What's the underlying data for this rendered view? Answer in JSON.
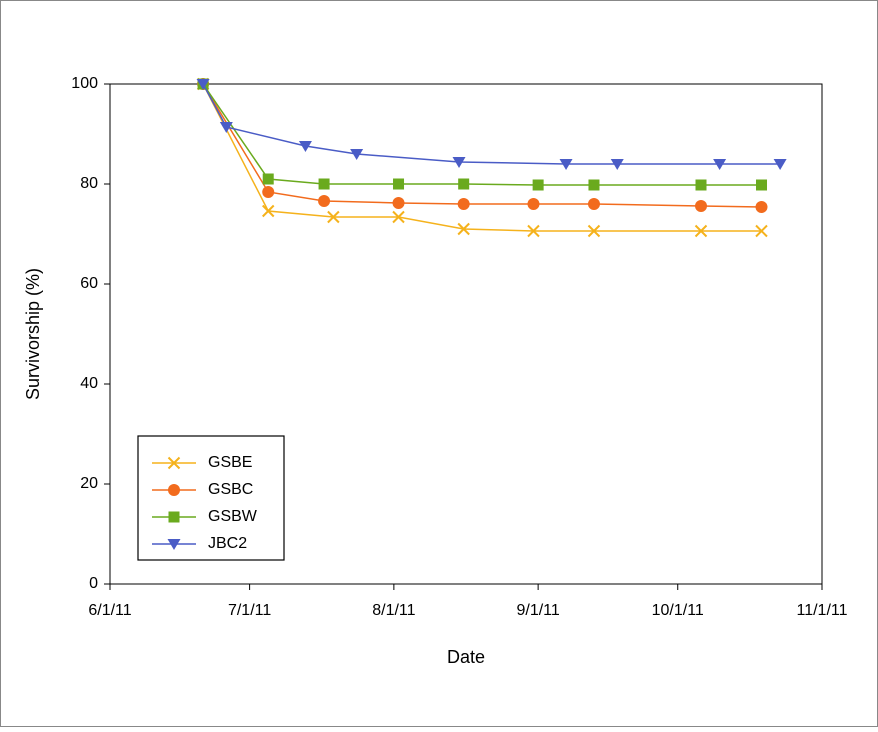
{
  "chart_data": {
    "type": "line",
    "x_label": "Date",
    "y_label": "Survivorship (%)",
    "xlim": [
      "6/1/11",
      "11/1/11"
    ],
    "xticks": [
      "6/1/11",
      "7/1/11",
      "8/1/11",
      "9/1/11",
      "10/1/11",
      "11/1/11"
    ],
    "ylim": [
      0,
      100
    ],
    "yticks": [
      0,
      20,
      40,
      60,
      80,
      100
    ],
    "grid": false,
    "legend": "lower left",
    "series": [
      {
        "name": "GSBE",
        "color": "#f5b21c",
        "marker": "x",
        "x": [
          "6/21/11",
          "7/5/11",
          "7/19/11",
          "8/2/11",
          "8/16/11",
          "8/31/11",
          "9/13/11",
          "10/6/11",
          "10/19/11"
        ],
        "values": [
          100,
          74.6,
          73.4,
          73.4,
          71,
          70.6,
          70.6,
          70.6,
          70.6
        ]
      },
      {
        "name": "GSBC",
        "color": "#f26b1d",
        "marker": "circle",
        "x": [
          "6/21/11",
          "7/5/11",
          "7/17/11",
          "8/2/11",
          "8/16/11",
          "8/31/11",
          "9/13/11",
          "10/6/11",
          "10/19/11"
        ],
        "values": [
          100,
          78.4,
          76.6,
          76.2,
          76,
          76,
          76,
          75.6,
          75.4
        ]
      },
      {
        "name": "GSBW",
        "color": "#6aaa1e",
        "marker": "square",
        "x": [
          "6/21/11",
          "7/5/11",
          "7/17/11",
          "8/2/11",
          "8/16/11",
          "9/1/11",
          "9/13/11",
          "10/6/11",
          "10/19/11"
        ],
        "values": [
          100,
          81,
          80,
          80,
          80,
          79.8,
          79.8,
          79.8,
          79.8
        ]
      },
      {
        "name": "JBC2",
        "color": "#4a5cc6",
        "marker": "triangle-down",
        "x": [
          "6/21/11",
          "6/26/11",
          "7/13/11",
          "7/24/11",
          "8/15/11",
          "9/7/11",
          "9/18/11",
          "10/10/11",
          "10/23/11"
        ],
        "values": [
          100,
          91.4,
          87.6,
          86,
          84.4,
          84,
          84,
          84,
          84
        ]
      }
    ]
  }
}
